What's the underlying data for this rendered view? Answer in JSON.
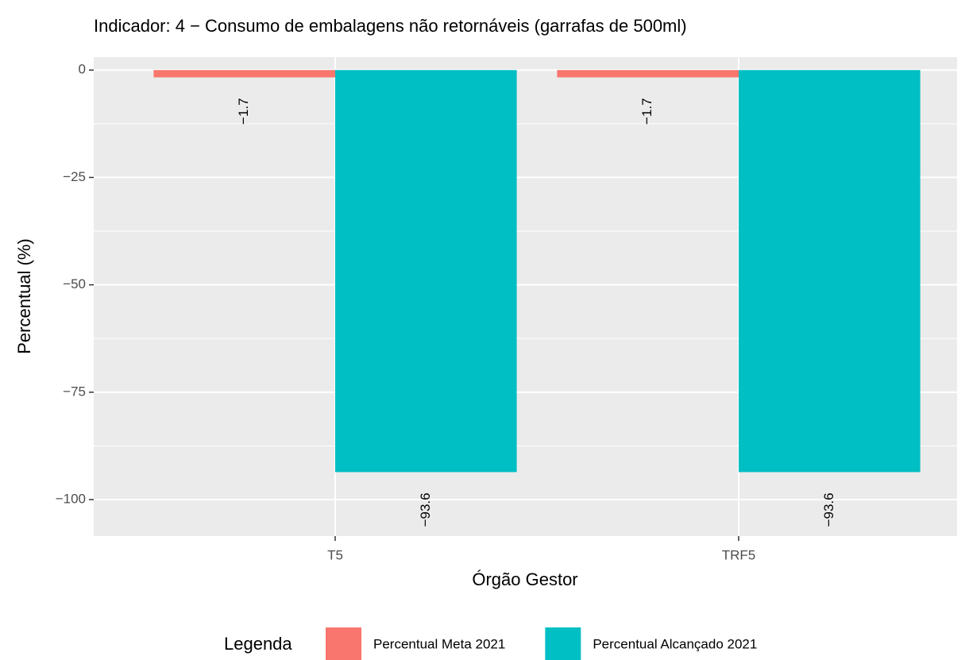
{
  "chart_data": {
    "type": "bar",
    "title": "Indicador: 4 − Consumo de embalagens não retornáveis (garrafas de 500ml)",
    "x_label": "Órgão Gestor",
    "y_label": "Percentual (%)",
    "categories": [
      "T5",
      "TRF5"
    ],
    "series": [
      {
        "name": "Percentual Meta 2021",
        "color": "#F8766D",
        "values": [
          -1.7,
          -1.7
        ],
        "value_labels": [
          "−1.7",
          "−1.7"
        ]
      },
      {
        "name": "Percentual Alcançado 2021",
        "color": "#00BFC4",
        "values": [
          -93.6,
          -93.6
        ],
        "value_labels": [
          "−93.6",
          "−93.6"
        ]
      }
    ],
    "ylim": [
      -108.5,
      3
    ],
    "yticks": [
      0,
      {
        "value": -25,
        "label": "−25"
      },
      {
        "value": -50,
        "label": "−50"
      },
      {
        "value": -75,
        "label": "−75"
      },
      {
        "value": -100,
        "label": "−100"
      }
    ],
    "minor_yticks": [
      -12.5,
      -37.5,
      -62.5,
      -87.5
    ],
    "grid": true,
    "legend_title": "Legenda",
    "legend_position": "bottom"
  }
}
